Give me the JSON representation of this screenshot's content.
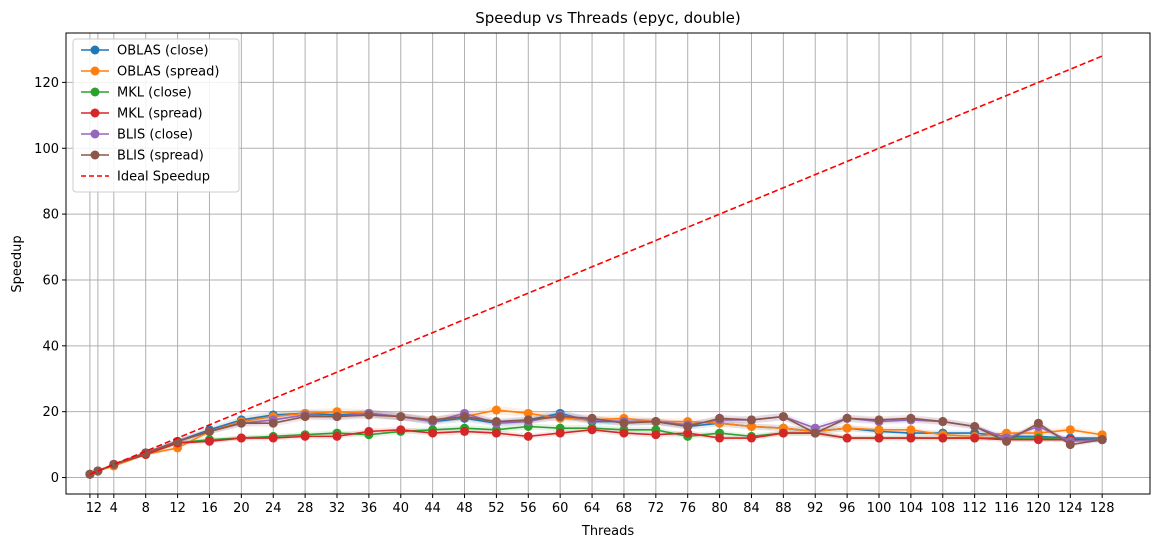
{
  "chart_data": {
    "type": "line",
    "title": "Speedup vs Threads (epyc, double)",
    "xlabel": "Threads",
    "ylabel": "Speedup",
    "xlim": [
      -2,
      134
    ],
    "ylim": [
      -5,
      135
    ],
    "xticks": [
      1,
      2,
      4,
      8,
      12,
      16,
      20,
      24,
      28,
      32,
      36,
      40,
      44,
      48,
      52,
      56,
      60,
      64,
      68,
      72,
      76,
      80,
      84,
      88,
      92,
      96,
      100,
      104,
      108,
      112,
      116,
      120,
      124,
      128
    ],
    "yticks": [
      0,
      20,
      40,
      60,
      80,
      100,
      120
    ],
    "grid": true,
    "legend_position": "upper left",
    "x": [
      1,
      2,
      4,
      8,
      12,
      16,
      20,
      24,
      28,
      32,
      36,
      40,
      44,
      48,
      52,
      56,
      60,
      64,
      68,
      72,
      76,
      80,
      84,
      88,
      92,
      96,
      100,
      104,
      108,
      112,
      116,
      120,
      124,
      128
    ],
    "series": [
      {
        "name": "OBLAS (close)",
        "color": "#1f77b4",
        "values": [
          1,
          2,
          4,
          7.5,
          11,
          14.5,
          17.5,
          19,
          19.5,
          19,
          19.5,
          18.5,
          17,
          18,
          16.5,
          17.5,
          19.5,
          17,
          17,
          17,
          15.5,
          16.5,
          15.5,
          15,
          14,
          15,
          14,
          13.5,
          13.5,
          13.5,
          12.5,
          12.5,
          12,
          12
        ]
      },
      {
        "name": "OBLAS (spread)",
        "color": "#ff7f0e",
        "values": [
          1,
          2,
          3.5,
          7,
          9,
          14,
          17,
          18.5,
          19.5,
          20,
          19.5,
          18.5,
          17.5,
          18.5,
          20.5,
          19.5,
          18,
          17.5,
          18,
          17,
          17,
          16.5,
          15.5,
          15,
          14,
          15,
          14.5,
          14.5,
          13,
          12.5,
          13.5,
          13.5,
          14.5,
          13
        ]
      },
      {
        "name": "MKL (close)",
        "color": "#2ca02c",
        "values": [
          1,
          2,
          4,
          7,
          10.5,
          11.5,
          12,
          12.5,
          13,
          13.5,
          13,
          14,
          14.5,
          15,
          14.5,
          15.5,
          15,
          15,
          14.5,
          14.5,
          12.5,
          13.5,
          12.5,
          13.5,
          13.5,
          12,
          12,
          12,
          12,
          12,
          12,
          12,
          11.5,
          11.5
        ]
      },
      {
        "name": "MKL (spread)",
        "color": "#d62728",
        "values": [
          1,
          2,
          4,
          7,
          10.5,
          11,
          12,
          12,
          12.5,
          12.5,
          14,
          14.5,
          13.5,
          14,
          13.5,
          12.5,
          13.5,
          14.5,
          13.5,
          13,
          13.5,
          12,
          12,
          13.5,
          13.5,
          12,
          12,
          12,
          12,
          12,
          11.5,
          11.5,
          11.5,
          11.5
        ]
      },
      {
        "name": "BLIS (close)",
        "color": "#9467bd",
        "values": [
          1,
          2,
          4,
          7.5,
          11,
          14,
          16.5,
          17.5,
          19,
          18.5,
          19.5,
          18.5,
          17,
          19.5,
          16.5,
          17,
          19,
          17.5,
          17,
          17,
          16,
          17.5,
          17.5,
          18.5,
          15,
          18,
          17,
          17.5,
          17,
          15.5,
          12,
          15.5,
          11,
          11.5
        ]
      },
      {
        "name": "BLIS (spread)",
        "color": "#8c564b",
        "values": [
          1,
          2,
          4,
          7.5,
          11,
          14,
          16.5,
          16.5,
          18.5,
          18.5,
          19,
          18.5,
          17.5,
          18.5,
          17,
          17.5,
          18.5,
          18,
          16.5,
          17,
          15.5,
          18,
          17.5,
          18.5,
          13.5,
          18,
          17.5,
          18,
          17,
          15.5,
          11,
          16.5,
          10,
          11.5
        ]
      },
      {
        "name": "Ideal Speedup",
        "color": "#ff0000",
        "dashed": true,
        "values": [
          1,
          2,
          4,
          8,
          12,
          16,
          20,
          24,
          28,
          32,
          36,
          40,
          44,
          48,
          52,
          56,
          60,
          64,
          68,
          72,
          76,
          80,
          84,
          88,
          92,
          96,
          100,
          104,
          108,
          112,
          116,
          120,
          124,
          128
        ]
      }
    ]
  }
}
